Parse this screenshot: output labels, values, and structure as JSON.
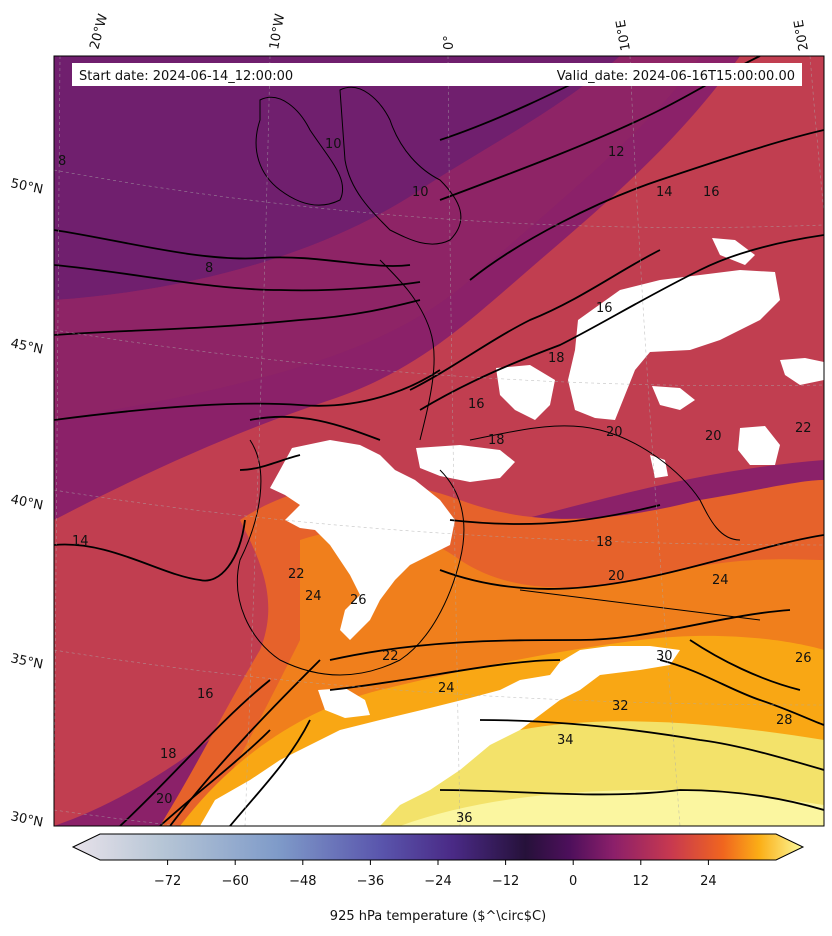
{
  "header": {
    "start_date": "Start date: 2024-06-14_12:00:00",
    "valid_date": "Valid_date: 2024-06-16T15:00:00.00"
  },
  "axes": {
    "top_lon_labels": [
      "20°W",
      "10°W",
      "0°",
      "10°E",
      "20°E"
    ],
    "left_lat_labels": [
      "50°N",
      "45°N",
      "40°N",
      "35°N",
      "30°N"
    ]
  },
  "contour_labels": [
    "8",
    "8",
    "10",
    "10",
    "12",
    "14",
    "16",
    "16",
    "18",
    "20",
    "22",
    "24",
    "26",
    "28",
    "30",
    "32",
    "34",
    "36",
    "14",
    "16",
    "18",
    "20",
    "22",
    "24",
    "26",
    "18",
    "20",
    "22",
    "24",
    "16",
    "18",
    "20"
  ],
  "colorbar": {
    "label": "925 hPa temperature ($^\\circ$C)",
    "ticks": [
      "-72",
      "-60",
      "-48",
      "-36",
      "-24",
      "-12",
      "0",
      "12",
      "24"
    ],
    "range": [
      -84,
      36
    ],
    "colors": {
      "cold_end": "#e6dfe6",
      "blue": "#6d86c1",
      "indigo": "#5b3fa5",
      "dark": "#2a0f3d",
      "purple": "#7a1f6d",
      "red": "#c73b51",
      "orange": "#f7891a",
      "yellow": "#fbf6a0"
    }
  }
}
